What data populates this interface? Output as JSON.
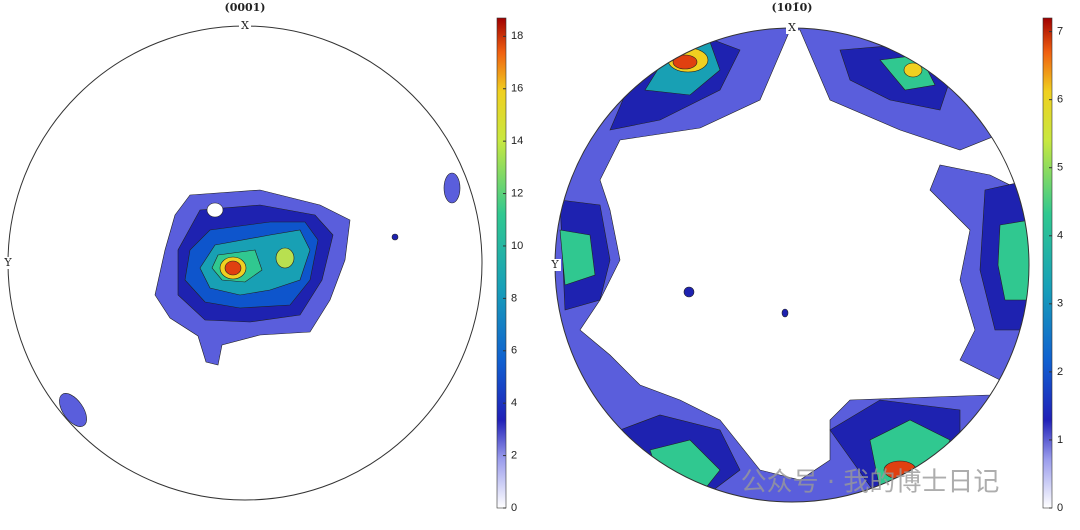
{
  "chart_data": [
    {
      "type": "pole-figure",
      "title": "(0001)",
      "x_label": "X",
      "y_label": "Y",
      "ylim": [
        0,
        18.7
      ],
      "yticks": [
        0,
        2,
        4,
        6,
        8,
        10,
        12,
        14,
        16,
        18
      ]
    },
    {
      "type": "pole-figure",
      "title": "(101̄0)",
      "x_label": "X",
      "y_label": "Y",
      "ylim": [
        0,
        7.2
      ],
      "yticks": [
        0,
        1,
        2,
        3,
        4,
        5,
        6,
        7
      ]
    }
  ],
  "watermark": "公众号 · 我的博士日记"
}
